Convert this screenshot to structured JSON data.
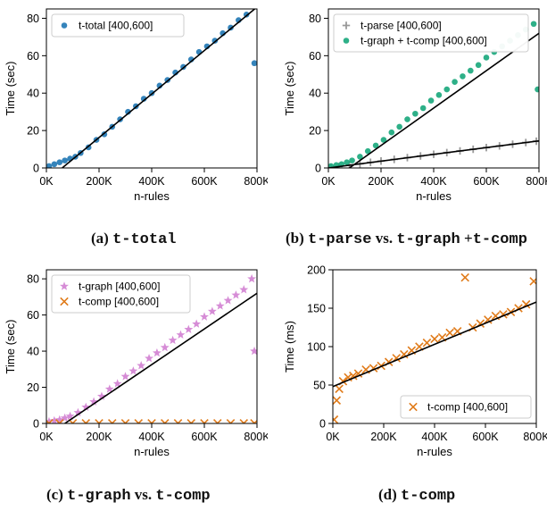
{
  "chart_data": [
    {
      "id": "a",
      "type": "scatter",
      "xlabel": "n-rules",
      "ylabel": "Time (sec)",
      "xlim": [
        0,
        800000
      ],
      "ylim": [
        0,
        85
      ],
      "xticks": [
        0,
        200000,
        400000,
        600000,
        800000
      ],
      "xtick_labels": [
        "0K",
        "200K",
        "400K",
        "600K",
        "800K"
      ],
      "yticks": [
        0,
        20,
        40,
        60,
        80
      ],
      "ytick_labels": [
        "0",
        "20",
        "40",
        "60",
        "80"
      ],
      "legend_position": "top-left",
      "series": [
        {
          "name": "t-total [400,600]",
          "marker": "circle",
          "color": "#1f77b4",
          "x": [
            10000,
            30000,
            50000,
            70000,
            90000,
            110000,
            130000,
            160000,
            190000,
            220000,
            250000,
            280000,
            310000,
            340000,
            370000,
            400000,
            430000,
            460000,
            490000,
            520000,
            550000,
            580000,
            610000,
            640000,
            670000,
            700000,
            730000,
            760000,
            790000
          ],
          "y": [
            1,
            2,
            3,
            4,
            5,
            6,
            8,
            11,
            15,
            18,
            22,
            26,
            30,
            33,
            37,
            40,
            44,
            47,
            51,
            54,
            58,
            62,
            65,
            68,
            72,
            75,
            79,
            82,
            56
          ]
        }
      ],
      "fit_line": {
        "x": [
          60000,
          800000
        ],
        "y": [
          0,
          86
        ]
      },
      "caption_label": "(a)",
      "caption_code": "t-total"
    },
    {
      "id": "b",
      "type": "scatter",
      "xlabel": "n-rules",
      "ylabel": "Time (sec)",
      "xlim": [
        0,
        800000
      ],
      "ylim": [
        0,
        85
      ],
      "xticks": [
        0,
        200000,
        400000,
        600000,
        800000
      ],
      "xtick_labels": [
        "0K",
        "200K",
        "400K",
        "600K",
        "800K"
      ],
      "yticks": [
        0,
        20,
        40,
        60,
        80
      ],
      "ytick_labels": [
        "0",
        "20",
        "40",
        "60",
        "80"
      ],
      "legend_position": "top-left",
      "series": [
        {
          "name": "t-parse [400,600]",
          "marker": "plus",
          "color": "#999999",
          "x": [
            10000,
            40000,
            80000,
            120000,
            160000,
            200000,
            250000,
            300000,
            350000,
            400000,
            450000,
            500000,
            550000,
            600000,
            650000,
            700000,
            750000,
            790000
          ],
          "y": [
            0.3,
            0.8,
            1.5,
            2.2,
            3,
            3.7,
            4.6,
            5.5,
            6.4,
            7.3,
            8.2,
            9.1,
            10,
            10.9,
            11.8,
            12.7,
            13.6,
            14.3
          ]
        },
        {
          "name": "t-graph + t-comp [400,600]",
          "marker": "circle",
          "color": "#17a77b",
          "x": [
            10000,
            30000,
            50000,
            70000,
            90000,
            120000,
            150000,
            180000,
            210000,
            240000,
            270000,
            300000,
            330000,
            360000,
            390000,
            420000,
            450000,
            480000,
            510000,
            540000,
            570000,
            600000,
            630000,
            660000,
            690000,
            720000,
            750000,
            780000,
            795000
          ],
          "y": [
            1,
            1.5,
            2,
            3,
            4,
            6,
            9,
            12,
            15,
            19,
            22,
            26,
            29,
            32,
            36,
            39,
            42,
            46,
            49,
            52,
            55,
            59,
            62,
            65,
            68,
            71,
            74,
            77,
            42
          ]
        }
      ],
      "fit_lines": [
        {
          "x": [
            0,
            800000
          ],
          "y": [
            0,
            14.5
          ]
        },
        {
          "x": [
            80000,
            800000
          ],
          "y": [
            0,
            72
          ]
        }
      ],
      "caption_label": "(b)",
      "caption_code_1": "t-parse",
      "caption_vs": "vs.",
      "caption_code_2": "t-graph",
      "caption_plus": "+",
      "caption_code_3": "t-comp"
    },
    {
      "id": "c",
      "type": "scatter",
      "xlabel": "n-rules",
      "ylabel": "Time (sec)",
      "xlim": [
        0,
        800000
      ],
      "ylim": [
        0,
        85
      ],
      "xticks": [
        0,
        200000,
        400000,
        600000,
        800000
      ],
      "xtick_labels": [
        "0K",
        "200K",
        "400K",
        "600K",
        "800K"
      ],
      "yticks": [
        0,
        20,
        40,
        60,
        80
      ],
      "ytick_labels": [
        "0",
        "20",
        "40",
        "60",
        "80"
      ],
      "legend_position": "top-left",
      "series": [
        {
          "name": "t-graph [400,600]",
          "marker": "star",
          "color": "#d17fd1",
          "x": [
            10000,
            30000,
            50000,
            70000,
            90000,
            120000,
            150000,
            180000,
            210000,
            240000,
            270000,
            300000,
            330000,
            360000,
            390000,
            420000,
            450000,
            480000,
            510000,
            540000,
            570000,
            600000,
            630000,
            660000,
            690000,
            720000,
            750000,
            780000,
            790000
          ],
          "y": [
            1,
            1.5,
            2,
            3,
            4,
            6,
            9,
            12,
            15,
            19,
            22,
            26,
            29,
            32,
            36,
            39,
            42,
            46,
            49,
            52,
            55,
            59,
            62,
            65,
            68,
            71,
            74,
            80,
            40
          ]
        },
        {
          "name": "t-comp [400,600]",
          "marker": "x",
          "color": "#e07b1a",
          "x": [
            10000,
            50000,
            100000,
            150000,
            200000,
            250000,
            300000,
            350000,
            400000,
            450000,
            500000,
            550000,
            600000,
            650000,
            700000,
            750000,
            790000
          ],
          "y": [
            0.1,
            0.1,
            0.1,
            0.1,
            0.1,
            0.1,
            0.1,
            0.1,
            0.1,
            0.1,
            0.1,
            0.1,
            0.1,
            0.1,
            0.1,
            0.1,
            0.1
          ]
        }
      ],
      "fit_line": {
        "x": [
          70000,
          800000
        ],
        "y": [
          0,
          72
        ]
      },
      "caption_label": "(c)",
      "caption_code_1": "t-graph",
      "caption_vs": "vs.",
      "caption_code_2": "t-comp"
    },
    {
      "id": "d",
      "type": "scatter",
      "xlabel": "n-rules",
      "ylabel": "Time (ms)",
      "xlim": [
        0,
        800000
      ],
      "ylim": [
        0,
        200
      ],
      "xticks": [
        0,
        200000,
        400000,
        600000,
        800000
      ],
      "xtick_labels": [
        "0K",
        "200K",
        "400K",
        "600K",
        "800K"
      ],
      "yticks": [
        0,
        50,
        100,
        150,
        200
      ],
      "ytick_labels": [
        "0",
        "50",
        "100",
        "150",
        "200"
      ],
      "legend_position": "bottom-right",
      "series": [
        {
          "name": "t-comp [400,600]",
          "marker": "x",
          "color": "#e07b1a",
          "x": [
            5000,
            15000,
            25000,
            40000,
            60000,
            80000,
            100000,
            130000,
            160000,
            190000,
            220000,
            250000,
            280000,
            310000,
            340000,
            370000,
            400000,
            430000,
            460000,
            490000,
            520000,
            550000,
            580000,
            610000,
            640000,
            670000,
            700000,
            730000,
            760000,
            790000
          ],
          "y": [
            5,
            30,
            45,
            55,
            60,
            62,
            65,
            70,
            72,
            75,
            80,
            85,
            90,
            95,
            100,
            105,
            110,
            112,
            118,
            120,
            190,
            125,
            130,
            135,
            140,
            142,
            145,
            150,
            155,
            185
          ]
        }
      ],
      "fit_line": {
        "x": [
          0,
          800000
        ],
        "y": [
          48,
          158
        ]
      },
      "caption_label": "(d)",
      "caption_code": "t-comp"
    }
  ]
}
